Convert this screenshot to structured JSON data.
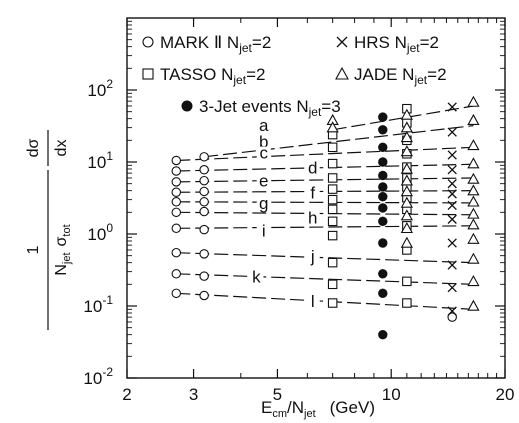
{
  "chart_data": {
    "type": "scatter",
    "title": "",
    "xlabel": {
      "main": "E",
      "sub": "cm",
      "mid": "/N",
      "sub2": "jet",
      "unit": "(GeV)"
    },
    "ylabel": {
      "left_num": "1",
      "left_den_a": "N",
      "left_den_a_sub": "jet",
      "left_den_b": "σ",
      "left_den_b_sub": "tot",
      "right_num": "dσ",
      "right_den": "dx"
    },
    "x_scale": "log",
    "y_scale": "log",
    "xlim": [
      2,
      20
    ],
    "ylim": [
      0.01,
      1000
    ],
    "x_ticks": [
      {
        "v": 2,
        "label": "2"
      },
      {
        "v": 3,
        "label": "3"
      },
      {
        "v": 5,
        "label": "5"
      },
      {
        "v": 10,
        "label": "10"
      },
      {
        "v": 20,
        "label": "20"
      }
    ],
    "y_ticks": [
      {
        "v": 100,
        "base": "10",
        "exp": "2"
      },
      {
        "v": 10,
        "base": "10",
        "exp": "1"
      },
      {
        "v": 1,
        "base": "10",
        "exp": "0"
      },
      {
        "v": 0.1,
        "base": "10",
        "exp": "-1"
      },
      {
        "v": 0.01,
        "base": "10",
        "exp": "-2"
      }
    ],
    "legend": {
      "placement": "top",
      "entries": [
        {
          "marker": "circle",
          "text": "MARK Ⅱ N",
          "sub": "jet",
          "tail": "=2"
        },
        {
          "marker": "cross",
          "text": "HRS  N",
          "sub": "jet",
          "tail": "=2"
        },
        {
          "marker": "square",
          "text": "TASSO  N",
          "sub": "jet",
          "tail": "=2"
        },
        {
          "marker": "triangle",
          "text": "JADE  N",
          "sub": "jet",
          "tail": "=2"
        },
        {
          "marker": "dot",
          "text": "3-Jet  events  N",
          "sub": "jet",
          "tail": "=3"
        }
      ]
    },
    "series": [
      {
        "name": "MARK II N_jet=2",
        "marker": "circle",
        "points": [
          [
            2.7,
            10.5
          ],
          [
            3.2,
            11.8
          ],
          [
            2.7,
            7.5
          ],
          [
            3.2,
            7.8
          ],
          [
            2.7,
            5.3
          ],
          [
            3.2,
            5.5
          ],
          [
            2.7,
            3.8
          ],
          [
            3.2,
            3.9
          ],
          [
            2.7,
            2.8
          ],
          [
            3.2,
            2.8
          ],
          [
            2.7,
            2.0
          ],
          [
            3.2,
            2.05
          ],
          [
            2.7,
            1.2
          ],
          [
            3.2,
            1.15
          ],
          [
            2.7,
            0.55
          ],
          [
            3.2,
            0.53
          ],
          [
            2.7,
            0.28
          ],
          [
            3.2,
            0.26
          ],
          [
            2.7,
            0.15
          ],
          [
            3.2,
            0.14
          ],
          [
            14.5,
            0.07
          ]
        ]
      },
      {
        "name": "HRS N_jet=2",
        "marker": "cross",
        "points": [
          [
            14.5,
            58
          ],
          [
            14.5,
            26
          ],
          [
            14.5,
            12.5
          ],
          [
            14.5,
            7.8
          ],
          [
            14.5,
            5.0
          ],
          [
            14.5,
            3.6
          ],
          [
            14.5,
            2.5
          ],
          [
            14.5,
            1.6
          ],
          [
            14.5,
            0.75
          ],
          [
            14.5,
            0.37
          ],
          [
            14.5,
            0.18
          ],
          [
            14.5,
            0.085
          ]
        ]
      },
      {
        "name": "TASSO N_jet=2",
        "marker": "square",
        "points": [
          [
            7.0,
            24
          ],
          [
            7.0,
            16
          ],
          [
            7.0,
            9.5
          ],
          [
            7.0,
            6.0
          ],
          [
            7.0,
            4.2
          ],
          [
            7.0,
            3.0
          ],
          [
            7.0,
            2.2
          ],
          [
            7.0,
            1.5
          ],
          [
            7.0,
            0.95
          ],
          [
            7.0,
            0.4
          ],
          [
            7.0,
            0.2
          ],
          [
            7.0,
            0.11
          ],
          [
            11,
            55
          ],
          [
            11,
            35
          ],
          [
            11,
            20
          ],
          [
            11,
            13
          ],
          [
            11,
            8.5
          ],
          [
            11,
            6.0
          ],
          [
            11,
            4.5
          ],
          [
            11,
            3.2
          ],
          [
            11,
            2.2
          ],
          [
            11,
            1.3
          ],
          [
            11,
            0.6
          ],
          [
            11,
            0.22
          ],
          [
            11,
            0.11
          ]
        ]
      },
      {
        "name": "JADE N_jet=2",
        "marker": "triangle",
        "points": [
          [
            7.0,
            38
          ],
          [
            7.0,
            30
          ],
          [
            11,
            45
          ],
          [
            11,
            30
          ],
          [
            11,
            22
          ],
          [
            11,
            14
          ],
          [
            11,
            8.0
          ],
          [
            11,
            5.5
          ],
          [
            11,
            3.9
          ],
          [
            11,
            2.7
          ],
          [
            11,
            1.8
          ],
          [
            11,
            1.2
          ],
          [
            11,
            0.75
          ],
          [
            16.5,
            68
          ],
          [
            16.5,
            38
          ],
          [
            16.5,
            17
          ],
          [
            16.5,
            9.5
          ],
          [
            16.5,
            5.8
          ],
          [
            16.5,
            4.0
          ],
          [
            16.5,
            2.8
          ],
          [
            16.5,
            1.9
          ],
          [
            16.5,
            1.35
          ],
          [
            16.5,
            0.85
          ],
          [
            16.5,
            0.45
          ],
          [
            16.5,
            0.22
          ],
          [
            16.5,
            0.1
          ]
        ]
      },
      {
        "name": "3-Jet events N_jet=3",
        "marker": "dot",
        "points": [
          [
            9.5,
            42
          ],
          [
            9.5,
            28
          ],
          [
            9.5,
            16
          ],
          [
            9.5,
            10
          ],
          [
            9.5,
            6.5
          ],
          [
            9.5,
            4.5
          ],
          [
            9.5,
            3.3
          ],
          [
            9.5,
            2.3
          ],
          [
            9.5,
            1.5
          ],
          [
            9.5,
            0.75
          ],
          [
            9.5,
            0.28
          ],
          [
            9.5,
            0.15
          ],
          [
            9.5,
            0.04
          ]
        ]
      }
    ],
    "curves": [
      {
        "label": "a",
        "x": [
          7,
          16.5
        ],
        "y": [
          28,
          60
        ]
      },
      {
        "label": "b",
        "x": [
          3.2,
          16.5
        ],
        "y": [
          11.8,
          32
        ]
      },
      {
        "label": "c",
        "x": [
          2.7,
          16.5
        ],
        "y": [
          10.5,
          16
        ]
      },
      {
        "label": "d",
        "x": [
          2.7,
          16.5
        ],
        "y": [
          7.5,
          9.3
        ]
      },
      {
        "label": "e",
        "x": [
          2.7,
          16.5
        ],
        "y": [
          5.3,
          6.0
        ]
      },
      {
        "label": "f",
        "x": [
          2.7,
          16.5
        ],
        "y": [
          3.8,
          4.0
        ]
      },
      {
        "label": "g",
        "x": [
          2.7,
          16.5
        ],
        "y": [
          2.8,
          2.7
        ]
      },
      {
        "label": "h",
        "x": [
          2.7,
          16.5
        ],
        "y": [
          2.0,
          1.85
        ]
      },
      {
        "label": "i",
        "x": [
          2.7,
          16.5
        ],
        "y": [
          1.2,
          1.3
        ]
      },
      {
        "label": "j",
        "x": [
          2.7,
          16.5
        ],
        "y": [
          0.55,
          0.4
        ]
      },
      {
        "label": "k",
        "x": [
          2.7,
          16.5
        ],
        "y": [
          0.28,
          0.2
        ]
      },
      {
        "label": "l",
        "x": [
          2.7,
          16.5
        ],
        "y": [
          0.15,
          0.09
        ]
      }
    ],
    "curve_labels": [
      {
        "text": "a",
        "x": 4.6,
        "y": 28
      },
      {
        "text": "b",
        "x": 4.6,
        "y": 16.5
      },
      {
        "text": "c",
        "x": 4.6,
        "y": 11.5
      },
      {
        "text": "d",
        "x": 6.2,
        "y": 7.2
      },
      {
        "text": "e",
        "x": 4.6,
        "y": 4.7
      },
      {
        "text": "f",
        "x": 6.2,
        "y": 3.2
      },
      {
        "text": "g",
        "x": 4.6,
        "y": 2.3
      },
      {
        "text": "h",
        "x": 6.2,
        "y": 1.45
      },
      {
        "text": "i",
        "x": 4.6,
        "y": 0.95
      },
      {
        "text": "j",
        "x": 6.2,
        "y": 0.42
      },
      {
        "text": "k",
        "x": 4.4,
        "y": 0.22
      },
      {
        "text": "l",
        "x": 6.2,
        "y": 0.1
      }
    ]
  }
}
